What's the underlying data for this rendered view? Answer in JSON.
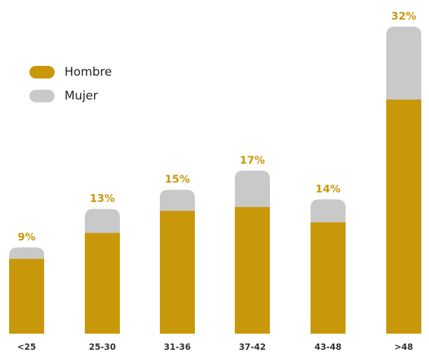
{
  "colors": {
    "hombre": "#C9980A",
    "mujer": "#C9C9C9",
    "total_label": "#C9980A",
    "axis_label": "#333333"
  },
  "legend": [
    {
      "name": "Hombre",
      "color": "#C9980A"
    },
    {
      "name": "Mujer",
      "color": "#C9C9C9"
    }
  ],
  "chart_data": {
    "type": "bar",
    "stacked": true,
    "categories": [
      "<25",
      "25-30",
      "31-36",
      "37-42",
      "43-48",
      ">48"
    ],
    "totals": [
      9,
      13,
      15,
      17,
      14,
      32
    ],
    "total_labels": [
      "9%",
      "13%",
      "15%",
      "17%",
      "14%",
      "32%"
    ],
    "series": [
      {
        "name": "Hombre",
        "values": [
          7.8,
          10.5,
          12.8,
          13.2,
          11.6,
          24.4
        ]
      },
      {
        "name": "Mujer",
        "values": [
          1.2,
          2.5,
          2.2,
          3.8,
          2.4,
          7.6
        ]
      }
    ],
    "y_unit": "%",
    "ylim": [
      0,
      32
    ],
    "legend_position": "top-left",
    "grid": false
  }
}
